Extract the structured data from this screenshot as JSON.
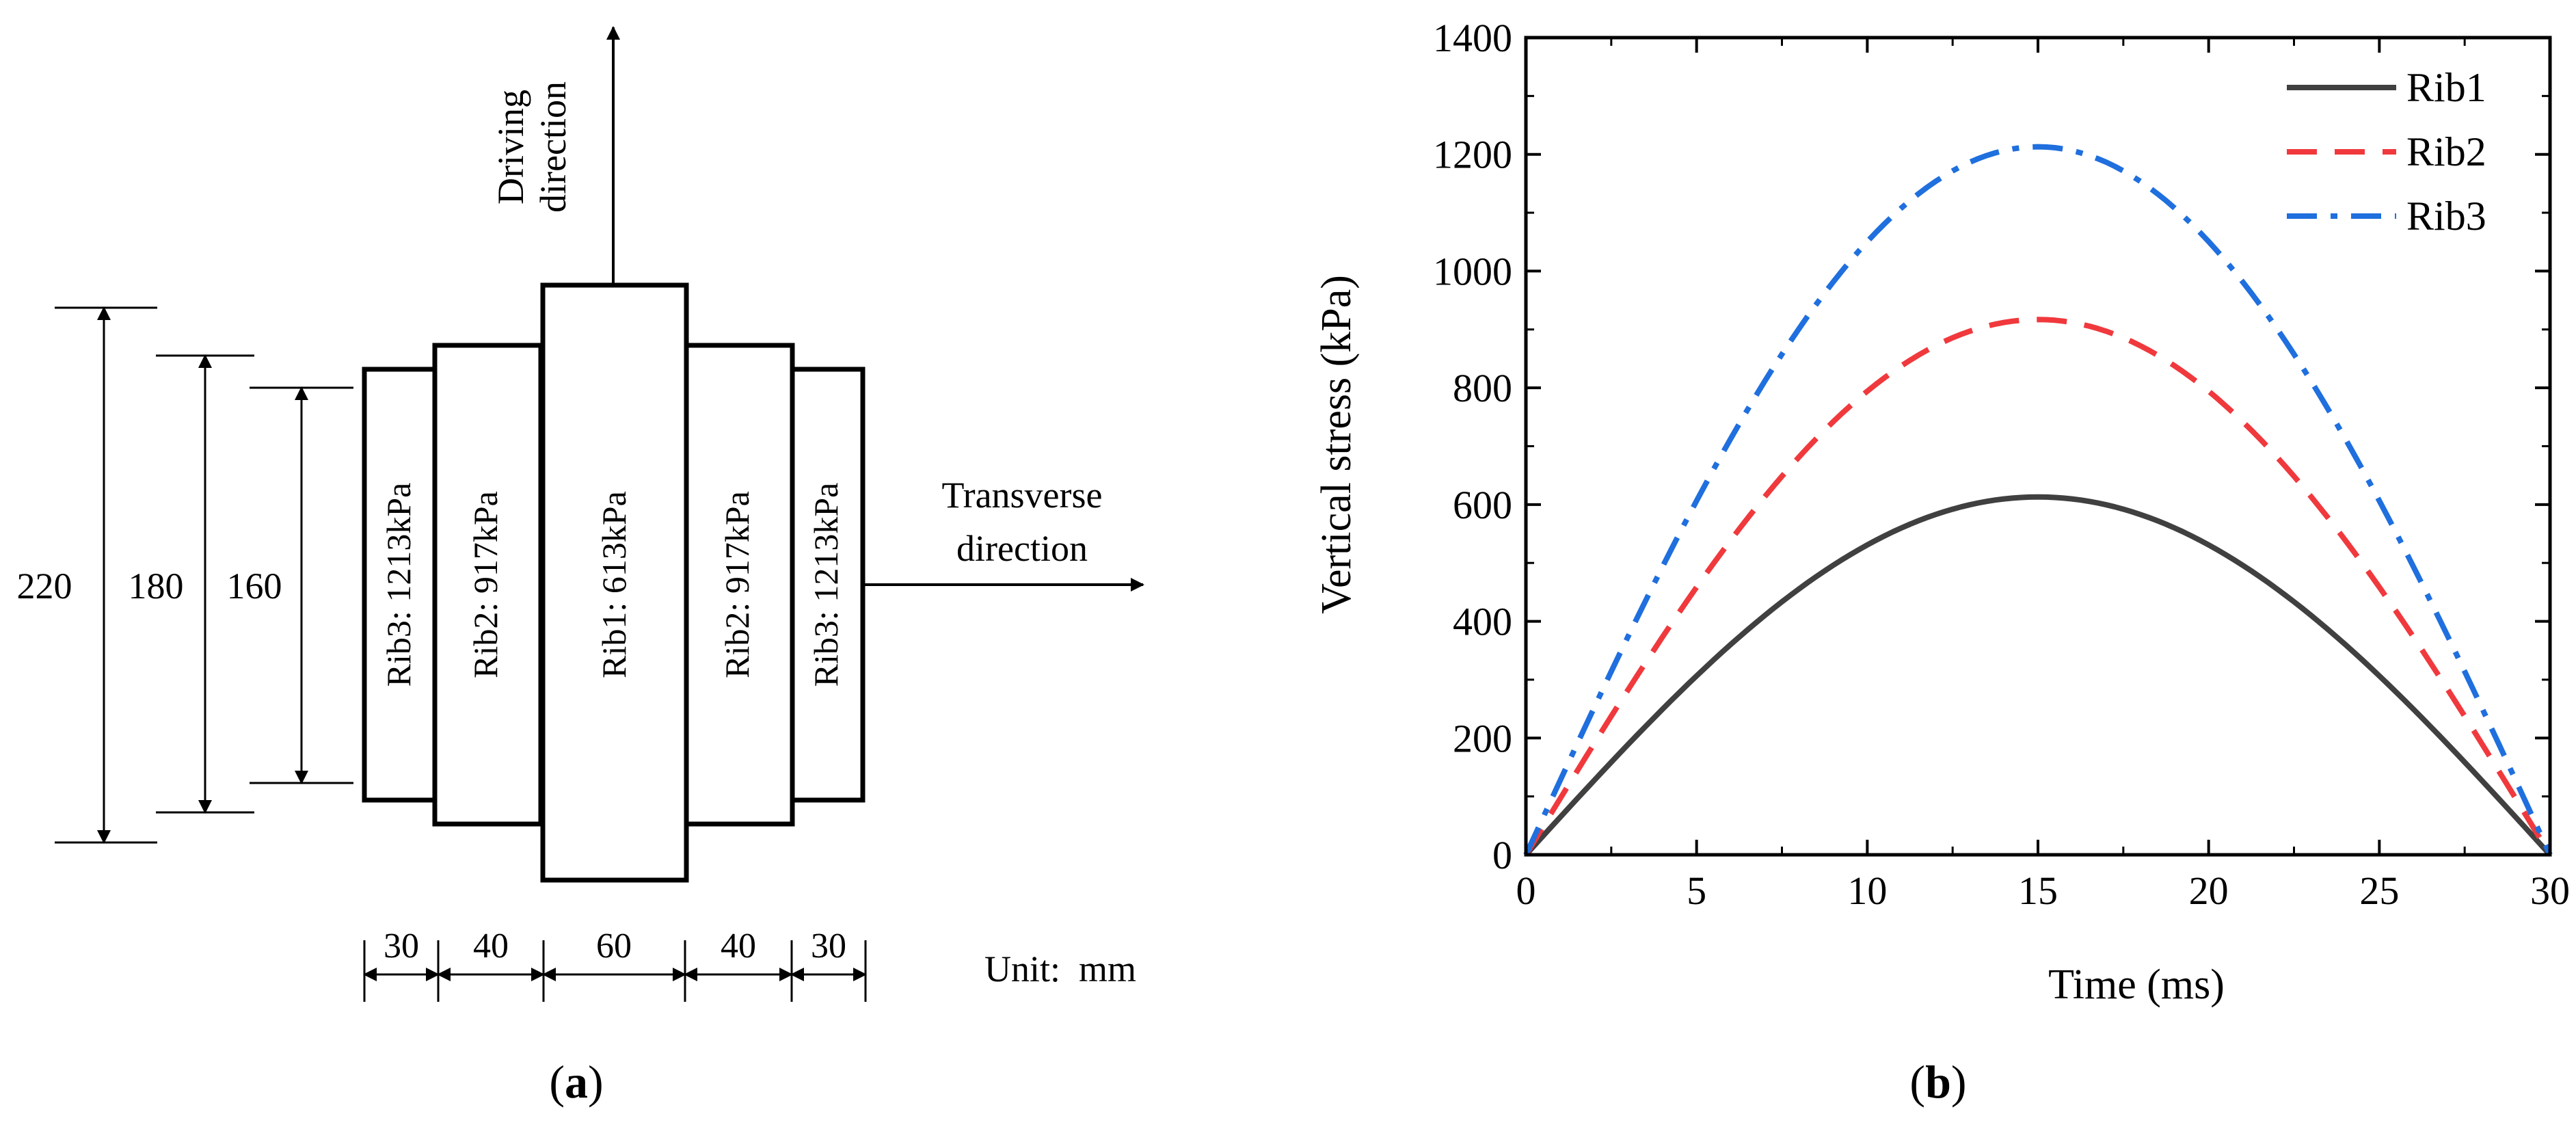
{
  "panel_a": {
    "label": "(a)",
    "label_letter": "a",
    "driving_direction": [
      "Driving",
      "direction"
    ],
    "transverse_direction": [
      "Transverse",
      "direction"
    ],
    "unit": "Unit:  mm",
    "ribs": [
      {
        "label": "Rib3: 1213kPa",
        "width": 30,
        "length": 160
      },
      {
        "label": "Rib2: 917kPa",
        "width": 40,
        "length": 180
      },
      {
        "label": "Rib1: 613kPa",
        "width": 60,
        "length": 220
      },
      {
        "label": "Rib2: 917kPa",
        "width": 40,
        "length": 180
      },
      {
        "label": "Rib3: 1213kPa",
        "width": 30,
        "length": 160
      }
    ],
    "length_dims": [
      "220",
      "180",
      "160"
    ],
    "width_dims": [
      "30",
      "40",
      "60",
      "40",
      "30"
    ]
  },
  "panel_b": {
    "label": "(b)",
    "label_letter": "b"
  },
  "chart_data": {
    "type": "line",
    "title": "",
    "xlabel": "Time (ms)",
    "ylabel": "Vertical stress (kPa)",
    "xlim": [
      0,
      30
    ],
    "ylim": [
      0,
      1400
    ],
    "xticks": [
      0,
      5,
      10,
      15,
      20,
      25,
      30
    ],
    "yticks": [
      0,
      200,
      400,
      600,
      800,
      1000,
      1200,
      1400
    ],
    "legend_position": "top-right",
    "x": [
      0,
      2.5,
      5,
      7.5,
      10,
      12.5,
      15,
      17.5,
      20,
      22.5,
      25,
      27.5,
      30
    ],
    "series": [
      {
        "name": "Rib1",
        "color": "#404040",
        "dash": "solid",
        "peak": 613,
        "values": [
          0,
          159,
          307,
          434,
          531,
          592,
          613,
          592,
          531,
          434,
          307,
          159,
          0
        ]
      },
      {
        "name": "Rib2",
        "color": "#f0393d",
        "dash": "dash",
        "peak": 917,
        "values": [
          0,
          237,
          459,
          648,
          794,
          886,
          917,
          886,
          794,
          648,
          459,
          237,
          0
        ]
      },
      {
        "name": "Rib3",
        "color": "#1f6fde",
        "dash": "dashdot",
        "peak": 1213,
        "values": [
          0,
          314,
          607,
          858,
          1050,
          1172,
          1213,
          1172,
          1050,
          858,
          607,
          314,
          0
        ]
      }
    ]
  }
}
